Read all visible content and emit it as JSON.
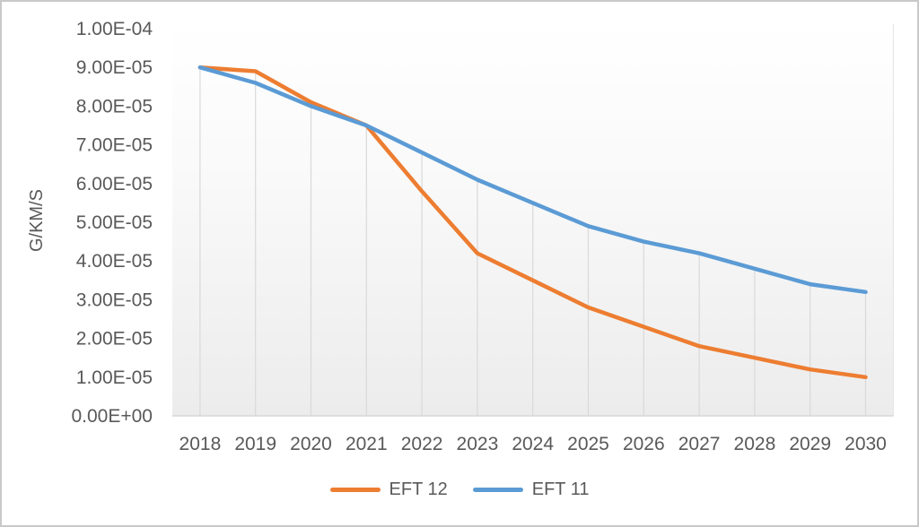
{
  "chart_data": {
    "type": "line",
    "title": "",
    "categories": [
      "2018",
      "2019",
      "2020",
      "2021",
      "2022",
      "2023",
      "2024",
      "2025",
      "2026",
      "2027",
      "2028",
      "2029",
      "2030"
    ],
    "series": [
      {
        "name": "EFT 12",
        "color": "#ED7D31",
        "values": [
          9e-05,
          8.9e-05,
          8.1e-05,
          7.5e-05,
          5.8e-05,
          4.2e-05,
          3.5e-05,
          2.8e-05,
          2.3e-05,
          1.8e-05,
          1.5e-05,
          1.2e-05,
          1e-05
        ]
      },
      {
        "name": "EFT 11",
        "color": "#5B9BD5",
        "values": [
          9e-05,
          8.6e-05,
          8e-05,
          7.5e-05,
          6.8e-05,
          6.1e-05,
          5.5e-05,
          4.9e-05,
          4.5e-05,
          4.2e-05,
          3.8e-05,
          3.4e-05,
          3.2e-05
        ]
      }
    ],
    "xlabel": "",
    "ylabel": "G/KM/S",
    "ylim": [
      0,
      0.0001
    ],
    "y_tick_labels": [
      "0.00E+00",
      "1.00E-05",
      "2.00E-05",
      "3.00E-05",
      "4.00E-05",
      "5.00E-05",
      "6.00E-05",
      "7.00E-05",
      "8.00E-05",
      "9.00E-05",
      "1.00E-04"
    ],
    "grid": "vertical-drop-lines",
    "legend_position": "bottom"
  },
  "colors": {
    "axis_text": "#595959",
    "drop_line": "#D9D9D9",
    "axis_line": "#D6D6D6",
    "plot_border": "#E3E3E3",
    "plot_bg_top": "#FFFFFF",
    "plot_bg_bottom": "#ECECEC",
    "frame_border": "#C9C9C9"
  }
}
